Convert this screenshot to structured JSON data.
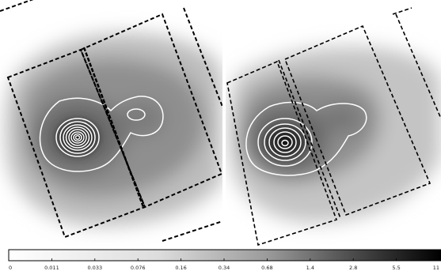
{
  "figure": {
    "panels": [
      {
        "id": "left-panel",
        "contour_count": 9
      },
      {
        "id": "right-panel",
        "contour_count": 7
      }
    ],
    "colorbar": {
      "colormap": "grayscale (white to black)",
      "ticks": [
        "0",
        "0.011",
        "0.033",
        "0.076",
        "0.16",
        "0.34",
        "0.68",
        "1.4",
        "2.8",
        "5.5",
        "11"
      ]
    }
  }
}
